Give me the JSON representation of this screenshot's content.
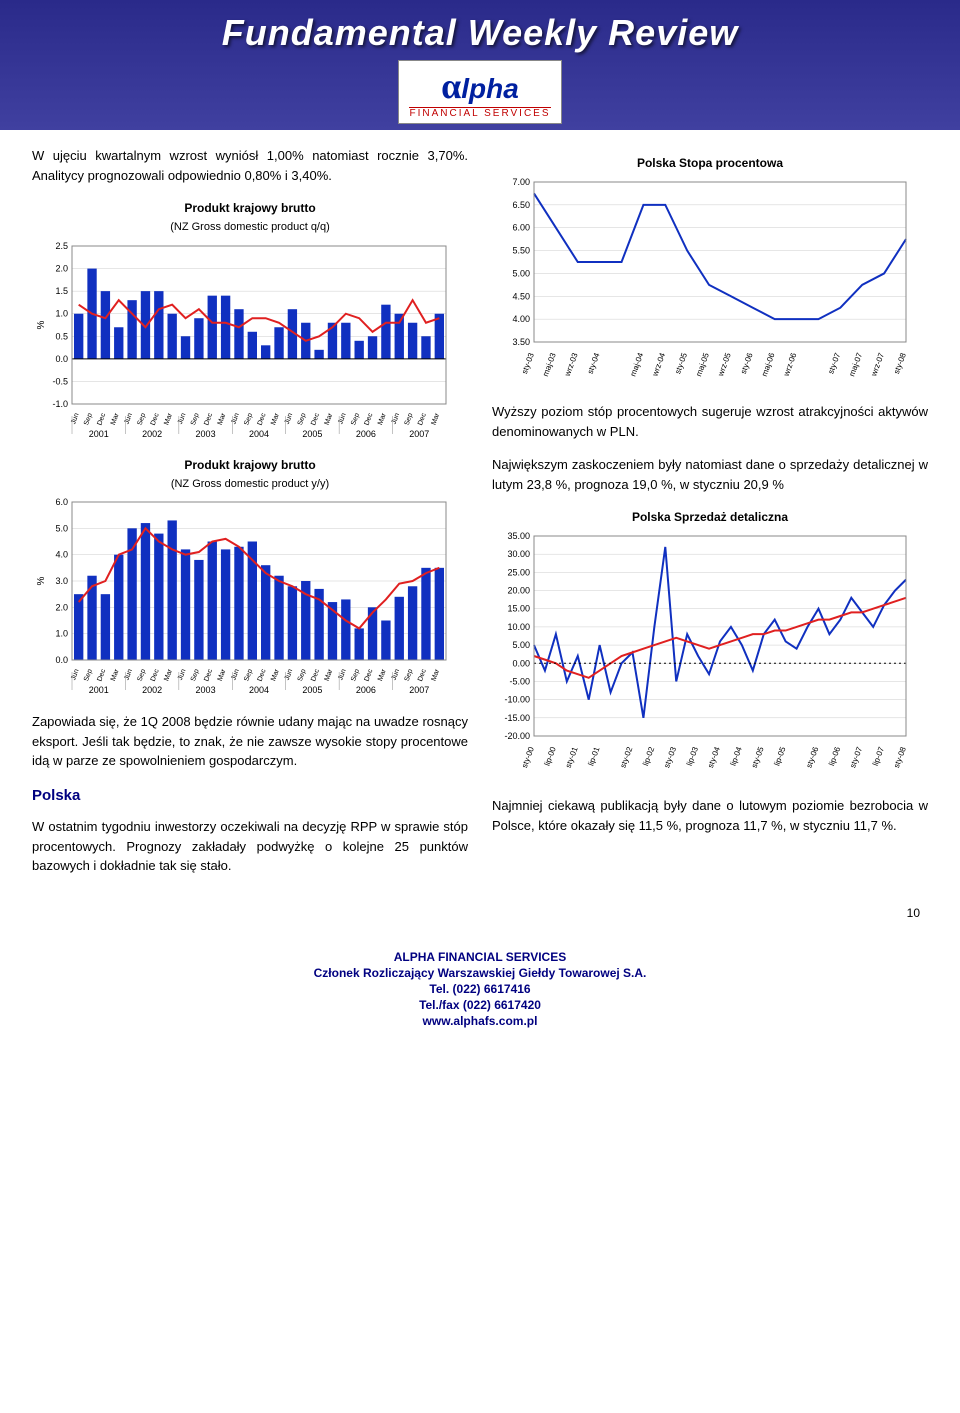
{
  "header": {
    "title": "Fundamental Weekly Review",
    "logo_main": "lpha",
    "logo_prefix": "α",
    "logo_sub": "FINANCIAL SERVICES"
  },
  "left": {
    "p1": "W ujęciu kwartalnym wzrost wyniósł 1,00% natomiast rocznie 3,70%. Analitycy prognozowali odpowiednio 0,80% i 3,40%.",
    "p2": "Zapowiada się, że 1Q 2008 będzie równie udany mając na uwadze rosnący eksport. Jeśli tak będzie, to znak, że nie zawsze wysokie stopy procentowe idą w parze ze spowolnieniem gospodarczym.",
    "section_head": "Polska",
    "p3": "W ostatnim tygodniu inwestorzy oczekiwali na decyzję RPP w sprawie stóp procentowych. Prognozy zakładały podwyżkę o kolejne 25 punktów bazowych i dokładnie tak się stało."
  },
  "right": {
    "p1": "Wyższy poziom stóp procentowych sugeruje wzrost atrakcyjności aktywów denominowanych w PLN.",
    "p2": "Największym zaskoczeniem były natomiast dane o sprzedaży detalicznej w lutym 23,8 %, prognoza 19,0 %, w styczniu 20,9 %",
    "p3": "Najmniej ciekawą publikacją były dane o lutowym poziomie bezrobocia w Polsce, które okazały się 11,5 %, prognoza 11,7 %, w styczniu 11,7 %."
  },
  "charts": {
    "gdp_qq": {
      "type": "bar",
      "title": "Produkt krajowy brutto",
      "subtitle": "(NZ Gross domestic product q/q)",
      "ylabel": "%",
      "ylim": [
        -1.0,
        2.5
      ],
      "ytick_step": 0.5,
      "background": "#ffffff",
      "grid_color": "#cccccc",
      "bar_color": "#1030c0",
      "line_color": "#e02020",
      "x_year_groups": [
        "2001",
        "2002",
        "2003",
        "2004",
        "2005",
        "2006",
        "2007"
      ],
      "x_quarters": [
        "Jun",
        "Sep",
        "Dec",
        "Mar"
      ],
      "bars": [
        1.0,
        2.0,
        1.5,
        0.7,
        1.3,
        1.5,
        1.5,
        1.0,
        0.5,
        0.9,
        1.4,
        1.4,
        1.1,
        0.6,
        0.3,
        0.7,
        1.1,
        0.8,
        0.2,
        0.8,
        0.8,
        0.4,
        0.5,
        1.2,
        1.0,
        0.8,
        0.5,
        1.0
      ],
      "line": [
        1.2,
        1.0,
        0.9,
        1.3,
        1.0,
        0.7,
        1.1,
        1.2,
        0.9,
        1.1,
        0.8,
        0.8,
        0.7,
        0.9,
        0.9,
        0.8,
        0.6,
        0.4,
        0.5,
        0.7,
        1.0,
        0.9,
        0.6,
        0.8,
        0.8,
        1.3,
        0.8,
        0.9
      ]
    },
    "gdp_yy": {
      "type": "bar",
      "title": "Produkt krajowy brutto",
      "subtitle": "(NZ Gross domestic product y/y)",
      "ylabel": "%",
      "ylim": [
        0.0,
        6.0
      ],
      "ytick_step": 1.0,
      "background": "#ffffff",
      "grid_color": "#cccccc",
      "bar_color": "#1030c0",
      "line_color": "#e02020",
      "x_year_groups": [
        "2001",
        "2002",
        "2003",
        "2004",
        "2005",
        "2006",
        "2007"
      ],
      "x_quarters": [
        "Jun",
        "Sep",
        "Dec",
        "Mar"
      ],
      "bars": [
        2.5,
        3.2,
        2.5,
        4.0,
        5.0,
        5.2,
        4.8,
        5.3,
        4.2,
        3.8,
        4.5,
        4.2,
        4.3,
        4.5,
        3.6,
        3.2,
        2.8,
        3.0,
        2.7,
        2.2,
        2.3,
        1.2,
        2.0,
        1.5,
        2.4,
        2.8,
        3.5,
        3.5
      ],
      "line": [
        2.2,
        2.8,
        3.0,
        4.0,
        4.2,
        5.0,
        4.5,
        4.2,
        4.0,
        4.1,
        4.5,
        4.6,
        4.3,
        3.8,
        3.3,
        3.0,
        2.8,
        2.5,
        2.3,
        1.9,
        1.5,
        1.2,
        1.8,
        2.3,
        2.9,
        3.0,
        3.3,
        3.5
      ]
    },
    "poland_rate": {
      "type": "line",
      "title": "Polska Stopa procentowa",
      "ylim": [
        3.5,
        7.0
      ],
      "ytick_step": 0.5,
      "background": "#ffffff",
      "grid_color": "#cccccc",
      "line_color": "#1030c0",
      "x_labels": [
        "sty-03",
        "maj-03",
        "wrz-03",
        "sty-04",
        "maj-04",
        "wrz-04",
        "sty-05",
        "maj-05",
        "wrz-05",
        "sty-06",
        "maj-06",
        "wrz-06",
        "sty-07",
        "maj-07",
        "wrz-07",
        "sty-08"
      ],
      "values": [
        6.75,
        6.0,
        5.25,
        5.25,
        5.25,
        6.5,
        6.5,
        5.5,
        4.75,
        4.5,
        4.25,
        4.0,
        4.0,
        4.0,
        4.25,
        4.75,
        5.0,
        5.75
      ]
    },
    "poland_retail": {
      "type": "line",
      "title": "Polska Sprzedaż detaliczna",
      "ylim": [
        -20.0,
        35.0
      ],
      "ytick_step": 5.0,
      "background": "#ffffff",
      "grid_color": "#cccccc",
      "series1_color": "#1030c0",
      "series2_color": "#e02020",
      "x_labels": [
        "sty-00",
        "lip-00",
        "sty-01",
        "lip-01",
        "sty-02",
        "lip-02",
        "sty-03",
        "lip-03",
        "sty-04",
        "lip-04",
        "sty-05",
        "lip-05",
        "sty-06",
        "lip-06",
        "sty-07",
        "lip-07",
        "sty-08"
      ],
      "series1": [
        5,
        -2,
        8,
        -5,
        2,
        -10,
        5,
        -8,
        0,
        3,
        -15,
        10,
        32,
        -5,
        8,
        2,
        -3,
        6,
        10,
        5,
        -2,
        8,
        12,
        6,
        4,
        10,
        15,
        8,
        12,
        18,
        14,
        10,
        16,
        20,
        23
      ],
      "series2": [
        2,
        1,
        0,
        -2,
        -3,
        -4,
        -2,
        0,
        2,
        3,
        4,
        5,
        6,
        7,
        6,
        5,
        4,
        5,
        6,
        7,
        8,
        8,
        9,
        9,
        10,
        11,
        12,
        12,
        13,
        14,
        14,
        15,
        16,
        17,
        18
      ]
    }
  },
  "footer": {
    "l1": "ALPHA FINANCIAL SERVICES",
    "l2": "Członek Rozliczający Warszawskiej Giełdy Towarowej S.A.",
    "l3": "Tel. (022) 6617416",
    "l4": "Tel./fax (022) 6617420",
    "l5": "www.alphafs.com.pl"
  },
  "page_number": "10"
}
